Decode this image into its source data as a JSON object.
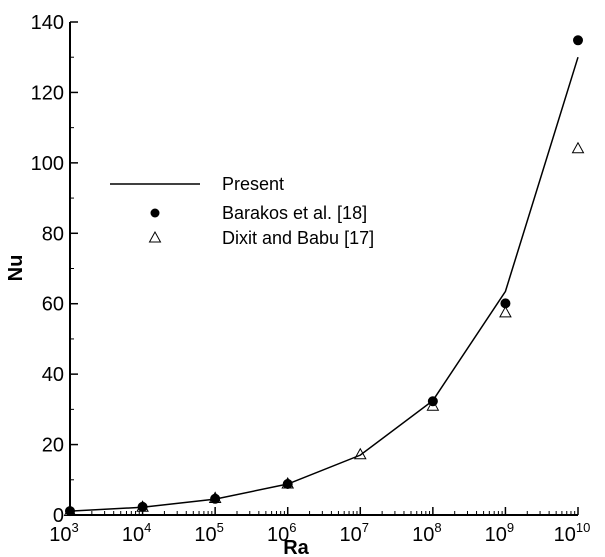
{
  "chart_data": {
    "type": "line",
    "xlabel": "Ra",
    "ylabel": "Nu",
    "x_scale": "log",
    "xlim": [
      1000,
      10000000000
    ],
    "ylim": [
      0,
      140
    ],
    "x_tick_labels": [
      {
        "base": "10",
        "exp": "3"
      },
      {
        "base": "10",
        "exp": "4"
      },
      {
        "base": "10",
        "exp": "5"
      },
      {
        "base": "10",
        "exp": "6"
      },
      {
        "base": "10",
        "exp": "7"
      },
      {
        "base": "10",
        "exp": "8"
      },
      {
        "base": "10",
        "exp": "9"
      },
      {
        "base": "10",
        "exp": "10"
      }
    ],
    "y_tick_labels": [
      "0",
      "20",
      "40",
      "60",
      "80",
      "100",
      "120",
      "140"
    ],
    "grid": false,
    "legend_position": "center-left",
    "series": [
      {
        "name": "Present",
        "marker": "line",
        "x": [
          1000,
          10000,
          100000,
          1000000,
          10000000,
          100000000,
          1000000000,
          10000000000
        ],
        "y": [
          1.1,
          2.2,
          4.5,
          8.8,
          17.0,
          32.5,
          63.5,
          130.0
        ]
      },
      {
        "name": "Barakos et al. [18]",
        "marker": "filled-circle",
        "x": [
          1000,
          10000,
          100000,
          1000000,
          100000000,
          1000000000,
          10000000000
        ],
        "y": [
          1.1,
          2.3,
          4.6,
          8.8,
          32.3,
          60.1,
          134.8
        ]
      },
      {
        "name": "Dixit and Babu [17]",
        "marker": "open-triangle",
        "x": [
          1000,
          10000,
          100000,
          1000000,
          10000000,
          100000000,
          1000000000,
          10000000000
        ],
        "y": [
          1.0,
          2.2,
          4.7,
          8.8,
          17.1,
          30.9,
          57.4,
          104.0
        ]
      }
    ]
  }
}
